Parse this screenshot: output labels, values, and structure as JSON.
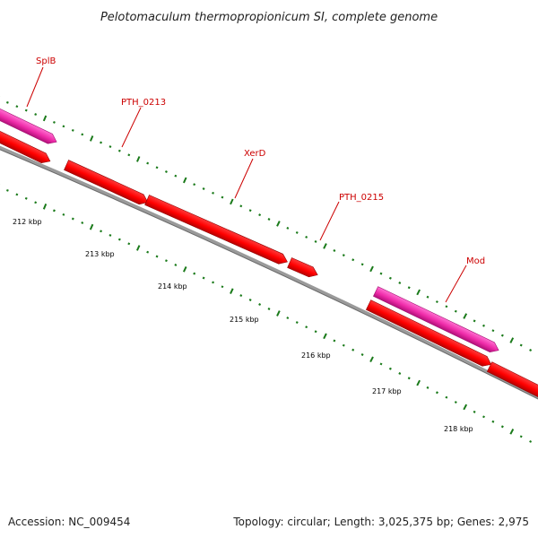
{
  "title": "Pelotomaculum thermopropionicum SI, complete genome",
  "footer": {
    "accession": "Accession: NC_009454",
    "summary": "Topology: circular; Length: 3,025,375 bp; Genes: 2,975"
  },
  "colors": {
    "background": "#ffffff",
    "backbone": "#888888",
    "cds": "#ff0000",
    "rna": "#ee2aa8",
    "dots": "#1a7a1a",
    "label": "#cc0000"
  },
  "features": [
    {
      "name": "SplB",
      "kind": "rna"
    },
    {
      "name": "PTH_0213",
      "kind": "cds"
    },
    {
      "name": "XerD",
      "kind": "cds"
    },
    {
      "name": "PTH_0215",
      "kind": "cds"
    },
    {
      "name": "Mod",
      "kind": "rna"
    }
  ],
  "ticks": [
    "212 kbp",
    "213 kbp",
    "214 kbp",
    "215 kbp",
    "216 kbp",
    "217 kbp",
    "218 kbp"
  ]
}
